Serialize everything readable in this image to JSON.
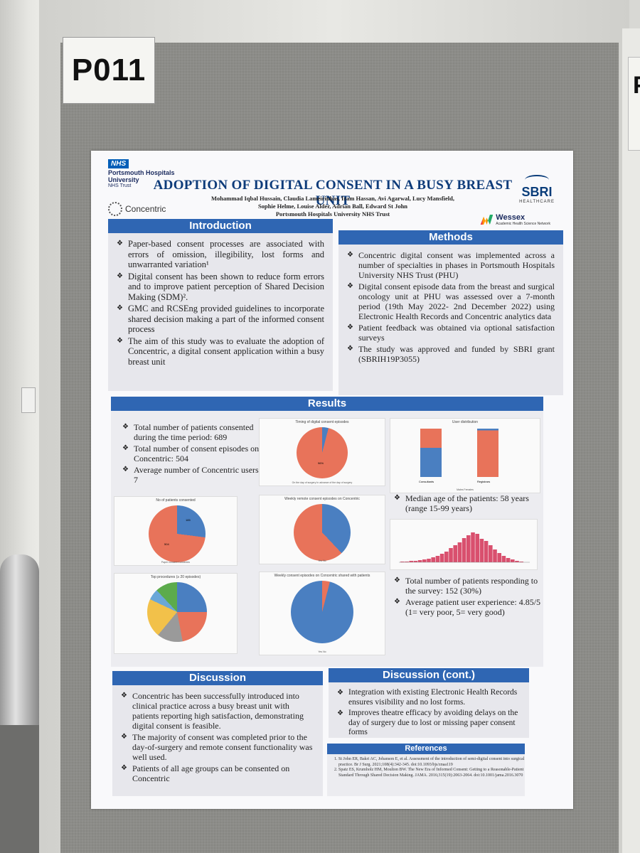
{
  "booth_label": "P011",
  "side_poster_letter": "P",
  "nhs": {
    "badge": "NHS",
    "line1": "Portsmouth Hospitals",
    "line2": "University",
    "line3": "NHS Trust"
  },
  "concentric_logo": "Concentric",
  "sbri": {
    "name": "SBRI",
    "sub": "HEALTHCARE"
  },
  "wessex": {
    "name": "Wessex",
    "sub": "Academic Health Science Network"
  },
  "title": "ADOPTION OF DIGITAL CONSENT IN A BUSY BREAST UNIT",
  "authors": [
    "Mohammad Iqbal Hussain, Claudia Lameirinhas, Iram Hassan, Avi Agarwal, Lucy Mansfield,",
    "Sophie Helme, Louise Alder, Adrian Ball, Edward St John",
    "Portsmouth Hospitals University NHS Trust"
  ],
  "introduction": {
    "heading": "Introduction",
    "bullets": [
      "Paper-based consent processes are associated with errors of omission, illegibility, lost forms and unwarranted variation¹",
      "Digital consent has been shown to reduce form errors and to improve patient perception of Shared Decision Making (SDM)².",
      "GMC and RCSEng provided guidelines to incorporate shared decision making a part of the informed consent process",
      "The aim of this study was to evaluate the adoption of Concentric, a digital consent application within a busy breast unit"
    ]
  },
  "methods": {
    "heading": "Methods",
    "bullets": [
      "Concentric digital consent was implemented across a number of specialties in phases in Portsmouth Hospitals University NHS Trust (PHU)",
      "Digital consent episode data from the breast and surgical oncology unit at PHU was assessed over a 7-month period (19th May 2022- 2nd December 2022) using Electronic Health Records and Concentric analytics data",
      "Patient feedback was obtained via optional satisfaction surveys",
      "The study was approved and funded by SBRI grant (SBRIH19P3055)"
    ]
  },
  "results": {
    "heading": "Results",
    "bullets": [
      "Total number of patients consented during the time period: 689",
      "Total number of consent episodes on Concentric: 504",
      "Average number of Concentric users: 7"
    ],
    "age_bullet": "Median age of the patients: 58 years (range 15-99 years)",
    "survey_bullets": [
      "Total number of patients responding to the survey: 152 (30%)",
      "Average patient user experience: 4.85/5 (1= very poor, 5= very good)"
    ],
    "charts": {
      "timing": {
        "title": "Timing of digital consent episodes",
        "legend": "On the day of surgery   In advance of the day of surgery",
        "label": "96%"
      },
      "users": {
        "title": "User distribution",
        "cat1": "Consultants",
        "cat2": "Registrars",
        "legend": "Males  Females"
      },
      "patients": {
        "title": "No of patients consented",
        "legend": "Paper consent   Concentric",
        "label1": "504",
        "label2": "185"
      },
      "remote": {
        "title": "Weekly remote consent episodes on Concentric",
        "legend": "Yes   No"
      },
      "procedures": {
        "title": "Top procedures (≥ 20 episodes)"
      },
      "shared": {
        "title": "Weekly consent episodes on Concentric shared with patients",
        "legend": "Yes   No"
      }
    }
  },
  "discussion": {
    "heading": "Discussion",
    "bullets": [
      "Concentric has been successfully introduced into clinical practice across a busy breast unit with patients reporting high satisfaction, demonstrating digital consent is feasible.",
      "The majority of consent was completed prior to the day-of-surgery and remote consent functionality was well used.",
      "Patients of all age groups can be consented on Concentric"
    ]
  },
  "discussion_cont": {
    "heading": "Discussion (cont.)",
    "bullets": [
      "Integration with existing Electronic Health Records ensures visibility and no lost forms.",
      "Improves theatre efficacy by avoiding delays on the day of surgery due to lost or missing paper consent forms"
    ]
  },
  "references": {
    "heading": "References",
    "items": [
      "St John ER, Bakri AC, Johanson E, et al. Assessment of the introduction of semi-digital consent into surgical practice. Br J Surg. 2021;108(4):342-345. doi:10.1093/bjs/znaa119",
      "Spatz ES, Krumholz HM, Moulton BW. The New Era of Informed Consent: Getting to a Reasonable-Patient Standard Through Shared Decision Making. JAMA. 2016;315(19):2063-2064. doi:10.1001/jama.2016.3070"
    ]
  },
  "colors": {
    "header_blue": "#2f66b3",
    "title_blue": "#0d3b7a",
    "pie_orange": "#e8735a",
    "pie_blue": "#4a7fc1",
    "hist_pink": "#d9506e"
  }
}
